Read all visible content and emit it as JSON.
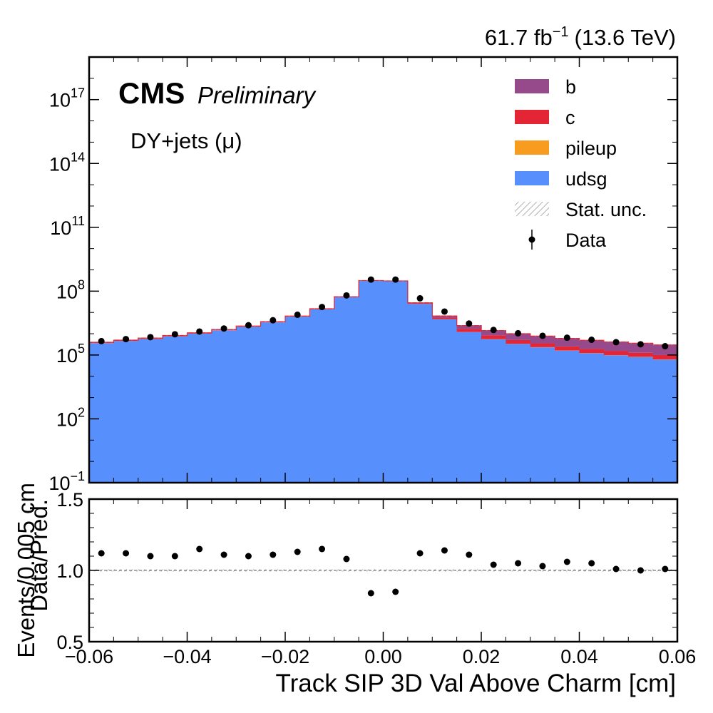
{
  "header": {
    "lumi_value": "61.7 fb",
    "lumi_exp": "−1",
    "energy": "(13.6 TeV)"
  },
  "labels": {
    "cms": "CMS",
    "preliminary": "Preliminary",
    "process": "DY+jets (μ)"
  },
  "legend": {
    "placement": "top-right",
    "items": [
      {
        "label": "b",
        "kind": "fill",
        "color": "#964a8b"
      },
      {
        "label": "c",
        "kind": "fill",
        "color": "#e42536"
      },
      {
        "label": "pileup",
        "kind": "fill",
        "color": "#f89c20"
      },
      {
        "label": "udsg",
        "kind": "fill",
        "color": "#5790fc"
      },
      {
        "label": "Stat. unc.",
        "kind": "hatch",
        "color": "#9a9a9a"
      },
      {
        "label": "Data",
        "kind": "marker",
        "color": "#000000"
      }
    ]
  },
  "chart_data": {
    "type": "bar",
    "stacked": true,
    "log_y": true,
    "xlabel": "Track SIP 3D Val Above Charm [cm]",
    "ylabel": "Events/0.005 cm",
    "ratio_ylabel": "Data/Pred.",
    "xlim": [
      -0.06,
      0.06
    ],
    "ylim": [
      0.1,
      1e+19
    ],
    "ratio_ylim": [
      0.5,
      1.5
    ],
    "x_ticks": [
      "−0.06",
      "−0.04",
      "−0.02",
      "0.00",
      "0.02",
      "0.04",
      "0.06"
    ],
    "x_tick_values": [
      -0.06,
      -0.04,
      -0.02,
      0.0,
      0.02,
      0.04,
      0.06
    ],
    "y_ticks": [
      {
        "base": "10",
        "exp": "−1",
        "value": 0.1
      },
      {
        "base": "10",
        "exp": "2",
        "value": 100
      },
      {
        "base": "10",
        "exp": "5",
        "value": 100000
      },
      {
        "base": "10",
        "exp": "8",
        "value": 100000000
      },
      {
        "base": "10",
        "exp": "11",
        "value": 100000000000
      },
      {
        "base": "10",
        "exp": "14",
        "value": 100000000000000
      },
      {
        "base": "10",
        "exp": "17",
        "value": 100000000000000000
      }
    ],
    "ratio_ticks": [
      "0.5",
      "1.0",
      "1.5"
    ],
    "ratio_tick_values": [
      0.5,
      1.0,
      1.5
    ],
    "bin_edges": [
      -0.06,
      -0.055,
      -0.05,
      -0.045,
      -0.04,
      -0.035,
      -0.03,
      -0.025,
      -0.02,
      -0.015,
      -0.01,
      -0.005,
      0.0,
      0.005,
      0.01,
      0.015,
      0.02,
      0.025,
      0.03,
      0.035,
      0.04,
      0.045,
      0.05,
      0.055,
      0.06
    ],
    "series": [
      {
        "name": "udsg",
        "color": "#5790fc",
        "values": [
          360000,
          450000,
          560000,
          750000,
          1000000,
          1450000,
          2100000,
          3400000,
          6300000,
          14000000,
          52000000,
          300000000,
          290000000,
          25000000,
          4800000,
          1200000,
          550000,
          330000,
          230000,
          160000,
          120000,
          95000,
          80000,
          60000
        ]
      },
      {
        "name": "pileup",
        "color": "#f89c20",
        "values": [
          3000,
          4000,
          5000,
          6000,
          8000,
          10000,
          15000,
          22000,
          35000,
          70000,
          200000,
          900000,
          800000,
          120000,
          25000,
          9000,
          6000,
          4500,
          3500,
          3000,
          2500,
          2000,
          1800,
          1500
        ]
      },
      {
        "name": "c",
        "color": "#e42536",
        "values": [
          22000,
          28000,
          35000,
          45000,
          60000,
          80000,
          110000,
          170000,
          300000,
          600000,
          1800000,
          9000000,
          8000000,
          1700000,
          900000,
          500000,
          280000,
          170000,
          120000,
          90000,
          70000,
          55000,
          45000,
          38000
        ]
      },
      {
        "name": "b",
        "color": "#964a8b",
        "values": [
          15000,
          20000,
          25000,
          30000,
          38000,
          50000,
          70000,
          100000,
          150000,
          300000,
          800000,
          3800000,
          3500000,
          1600000,
          1150000,
          720000,
          580000,
          500000,
          420000,
          350000,
          300000,
          260000,
          230000,
          200000
        ]
      }
    ],
    "data": {
      "name": "Data",
      "x": [
        -0.0575,
        -0.0525,
        -0.0475,
        -0.0425,
        -0.0375,
        -0.0325,
        -0.0275,
        -0.0225,
        -0.0175,
        -0.0125,
        -0.0075,
        -0.0025,
        0.0025,
        0.0075,
        0.0125,
        0.0175,
        0.0225,
        0.0275,
        0.0325,
        0.0375,
        0.0425,
        0.0475,
        0.0525,
        0.0575
      ],
      "y": [
        450000,
        560000,
        690000,
        940000,
        1270000,
        1760000,
        2500000,
        4300000,
        7800000,
        18000000,
        63000000,
        350000000,
        350000000,
        46000000,
        11000000,
        3000000,
        1500000,
        1050000,
        800000,
        650000,
        520000,
        400000,
        320000,
        260000
      ]
    },
    "ratio": {
      "x": [
        -0.0575,
        -0.0525,
        -0.0475,
        -0.0425,
        -0.0375,
        -0.0325,
        -0.0275,
        -0.0225,
        -0.0175,
        -0.0125,
        -0.0075,
        -0.0025,
        0.0025,
        0.0075,
        0.0125,
        0.0175,
        0.0225,
        0.0275,
        0.0325,
        0.0375,
        0.0425,
        0.0475,
        0.0525,
        0.0575
      ],
      "y": [
        1.12,
        1.12,
        1.1,
        1.1,
        1.15,
        1.11,
        1.1,
        1.11,
        1.13,
        1.15,
        1.08,
        0.84,
        0.85,
        1.12,
        1.14,
        1.11,
        1.04,
        1.05,
        1.03,
        1.06,
        1.05,
        1.01,
        1.0,
        1.01
      ]
    }
  }
}
